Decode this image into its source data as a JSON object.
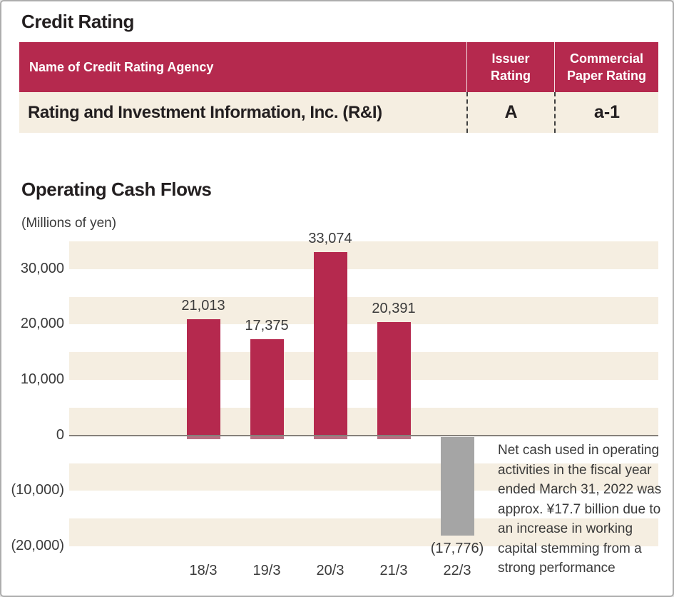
{
  "colors": {
    "accent": "#b5294e",
    "cream": "#f5eee1",
    "gray_bar": "#a5a5a5",
    "heading_text": "#231f20",
    "chart_text": "#3b3b3b"
  },
  "credit_rating": {
    "title": "Credit Rating",
    "table": {
      "header": {
        "agency_col": "Name of Credit Rating Agency",
        "issuer_col": "Issuer\nRating",
        "cp_col": "Commercial\nPaper Rating"
      },
      "row": {
        "agency": "Rating and Investment Information, Inc. (R&I)",
        "issuer_rating": "A",
        "commercial_paper_rating": "a-1"
      }
    }
  },
  "cash_flows": {
    "title": "Operating Cash Flows",
    "unit_label": "(Millions of yen)",
    "annotation_lines": [
      "Net cash used in operating",
      "activities in the fiscal year",
      "ended March 31, 2022 was",
      "approx. ¥17.7 billion due to",
      "an increase in working",
      "capital stemming from a",
      "strong performance"
    ]
  },
  "chart_data": {
    "type": "bar",
    "title": "Operating Cash Flows",
    "ylabel": "(Millions of yen)",
    "categories": [
      "18/3",
      "19/3",
      "20/3",
      "21/3",
      "22/3"
    ],
    "values": [
      21013,
      17375,
      33074,
      20391,
      -17776
    ],
    "value_labels": [
      "21,013",
      "17,375",
      "33,074",
      "20,391",
      "(17,776)"
    ],
    "bar_colors": [
      "#b5294e",
      "#b5294e",
      "#b5294e",
      "#b5294e",
      "#a5a5a5"
    ],
    "ylim": [
      -20000,
      35000
    ],
    "band": 5000,
    "ytick_values": [
      30000,
      20000,
      10000,
      0,
      -10000,
      -20000
    ],
    "ytick_labels": [
      "30,000",
      "20,000",
      "10,000",
      "0",
      "(10,000)",
      "(20,000)"
    ],
    "grid": "alternating horizontal bands of 5,000 (cream/white)",
    "legend": "none"
  }
}
